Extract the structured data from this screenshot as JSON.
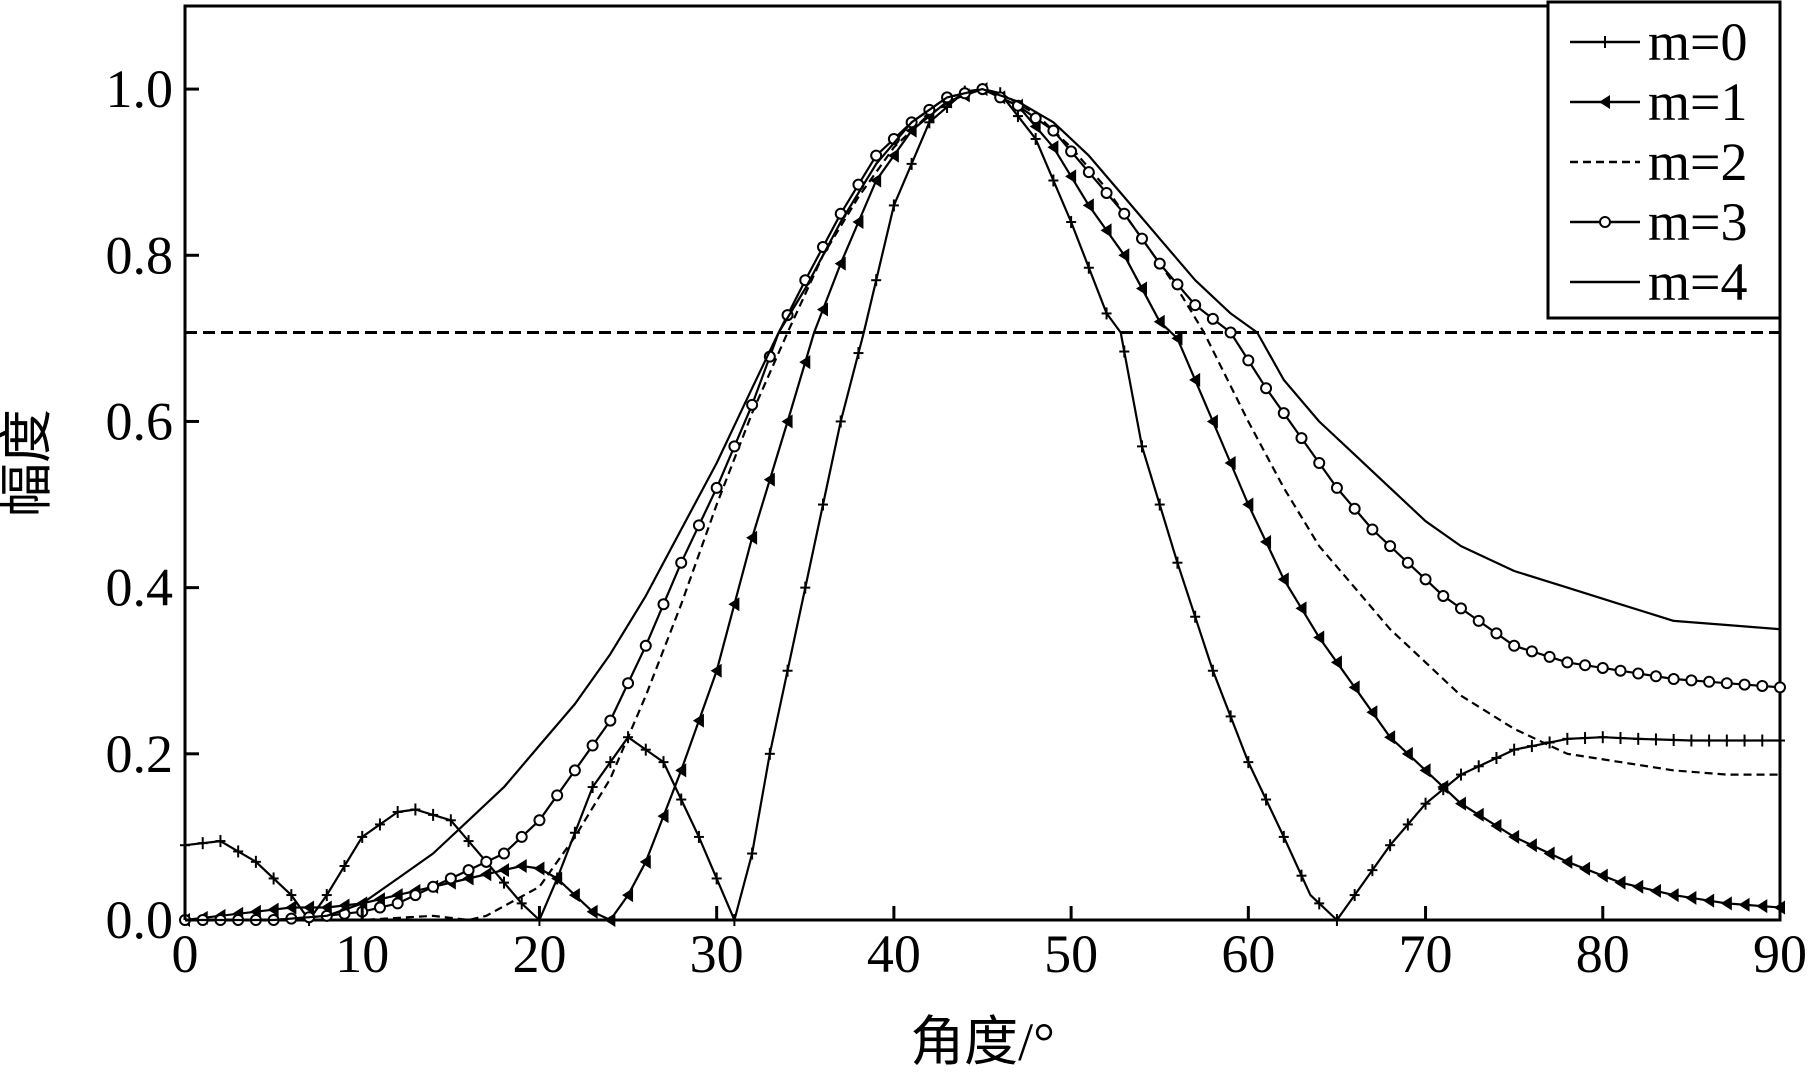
{
  "chart_data": {
    "type": "line",
    "title": "",
    "xlabel": "角度/°",
    "ylabel": "幅度",
    "xlim": [
      0,
      90
    ],
    "ylim": [
      0,
      1.1
    ],
    "x_ticks": [
      "0",
      "10",
      "20",
      "30",
      "40",
      "50",
      "60",
      "70",
      "80",
      "90"
    ],
    "y_ticks": [
      "0.0",
      "0.2",
      "0.4",
      "0.6",
      "0.8",
      "1.0"
    ],
    "grid": false,
    "legend_position": "top-right",
    "reference_line": {
      "y": 0.707,
      "style": "dashed"
    },
    "series": [
      {
        "name": "m=0",
        "marker": "plus",
        "dash": "solid",
        "points": [
          [
            0,
            0.09
          ],
          [
            2,
            0.095
          ],
          [
            4,
            0.07
          ],
          [
            6,
            0.03
          ],
          [
            7,
            0.0
          ],
          [
            8,
            0.03
          ],
          [
            10,
            0.1
          ],
          [
            12,
            0.13
          ],
          [
            13,
            0.133
          ],
          [
            15,
            0.12
          ],
          [
            17,
            0.07
          ],
          [
            19,
            0.02
          ],
          [
            20,
            0.0
          ],
          [
            21,
            0.05
          ],
          [
            23,
            0.16
          ],
          [
            25,
            0.22
          ],
          [
            27,
            0.19
          ],
          [
            29,
            0.1
          ],
          [
            31,
            0.0
          ],
          [
            32,
            0.08
          ],
          [
            33,
            0.2
          ],
          [
            35,
            0.4
          ],
          [
            37,
            0.6
          ],
          [
            38.3,
            0.707
          ],
          [
            40,
            0.86
          ],
          [
            42,
            0.96
          ],
          [
            44,
            0.997
          ],
          [
            45,
            1.0
          ],
          [
            46,
            0.995
          ],
          [
            48,
            0.94
          ],
          [
            50,
            0.84
          ],
          [
            52,
            0.73
          ],
          [
            52.8,
            0.707
          ],
          [
            54,
            0.57
          ],
          [
            56,
            0.43
          ],
          [
            58,
            0.3
          ],
          [
            60,
            0.19
          ],
          [
            62,
            0.1
          ],
          [
            63.5,
            0.03
          ],
          [
            65,
            0.0
          ],
          [
            66,
            0.03
          ],
          [
            68,
            0.09
          ],
          [
            70,
            0.14
          ],
          [
            72,
            0.175
          ],
          [
            75,
            0.205
          ],
          [
            78,
            0.218
          ],
          [
            80,
            0.22
          ],
          [
            82,
            0.218
          ],
          [
            85,
            0.216
          ],
          [
            90,
            0.216
          ]
        ]
      },
      {
        "name": "m=1",
        "marker": "left-triangle",
        "dash": "solid",
        "points": [
          [
            0,
            0.0
          ],
          [
            2,
            0.005
          ],
          [
            4,
            0.01
          ],
          [
            6,
            0.015
          ],
          [
            8,
            0.015
          ],
          [
            10,
            0.02
          ],
          [
            12,
            0.03
          ],
          [
            14,
            0.04
          ],
          [
            16,
            0.05
          ],
          [
            18,
            0.06
          ],
          [
            19,
            0.065
          ],
          [
            20,
            0.062
          ],
          [
            21,
            0.05
          ],
          [
            22,
            0.03
          ],
          [
            23,
            0.01
          ],
          [
            24,
            0.0
          ],
          [
            25,
            0.03
          ],
          [
            26,
            0.07
          ],
          [
            28,
            0.18
          ],
          [
            30,
            0.3
          ],
          [
            32,
            0.46
          ],
          [
            34,
            0.6
          ],
          [
            35.5,
            0.707
          ],
          [
            37,
            0.79
          ],
          [
            39,
            0.89
          ],
          [
            41,
            0.95
          ],
          [
            43,
            0.985
          ],
          [
            45,
            1.0
          ],
          [
            47,
            0.98
          ],
          [
            49,
            0.93
          ],
          [
            51,
            0.86
          ],
          [
            53,
            0.8
          ],
          [
            55,
            0.72
          ],
          [
            56,
            0.7
          ],
          [
            58,
            0.6
          ],
          [
            60,
            0.5
          ],
          [
            62,
            0.41
          ],
          [
            64,
            0.34
          ],
          [
            66,
            0.28
          ],
          [
            68,
            0.22
          ],
          [
            70,
            0.18
          ],
          [
            72,
            0.14
          ],
          [
            75,
            0.1
          ],
          [
            78,
            0.07
          ],
          [
            81,
            0.045
          ],
          [
            84,
            0.03
          ],
          [
            87,
            0.02
          ],
          [
            90,
            0.015
          ]
        ]
      },
      {
        "name": "m=2",
        "marker": "none",
        "dash": "dashed",
        "points": [
          [
            0,
            0.0
          ],
          [
            5,
            0.0
          ],
          [
            10,
            0.0
          ],
          [
            14,
            0.005
          ],
          [
            16,
            0.0
          ],
          [
            17,
            0.005
          ],
          [
            20,
            0.04
          ],
          [
            22,
            0.1
          ],
          [
            24,
            0.17
          ],
          [
            26,
            0.27
          ],
          [
            28,
            0.38
          ],
          [
            30,
            0.5
          ],
          [
            32,
            0.61
          ],
          [
            34,
            0.707
          ],
          [
            36,
            0.8
          ],
          [
            38,
            0.87
          ],
          [
            40,
            0.93
          ],
          [
            42,
            0.97
          ],
          [
            44,
            0.995
          ],
          [
            45,
            1.0
          ],
          [
            46,
            0.995
          ],
          [
            48,
            0.97
          ],
          [
            50,
            0.93
          ],
          [
            52,
            0.88
          ],
          [
            54,
            0.82
          ],
          [
            56,
            0.76
          ],
          [
            57.5,
            0.707
          ],
          [
            60,
            0.6
          ],
          [
            62,
            0.52
          ],
          [
            64,
            0.45
          ],
          [
            66,
            0.4
          ],
          [
            68,
            0.35
          ],
          [
            70,
            0.31
          ],
          [
            72,
            0.27
          ],
          [
            75,
            0.23
          ],
          [
            78,
            0.2
          ],
          [
            81,
            0.19
          ],
          [
            84,
            0.18
          ],
          [
            87,
            0.175
          ],
          [
            90,
            0.175
          ]
        ]
      },
      {
        "name": "m=3",
        "marker": "circle",
        "dash": "solid",
        "points": [
          [
            0,
            0.0
          ],
          [
            5,
            0.0
          ],
          [
            8,
            0.005
          ],
          [
            10,
            0.01
          ],
          [
            12,
            0.02
          ],
          [
            14,
            0.04
          ],
          [
            16,
            0.06
          ],
          [
            18,
            0.08
          ],
          [
            20,
            0.12
          ],
          [
            22,
            0.18
          ],
          [
            24,
            0.24
          ],
          [
            26,
            0.33
          ],
          [
            28,
            0.43
          ],
          [
            30,
            0.52
          ],
          [
            32,
            0.62
          ],
          [
            33.5,
            0.707
          ],
          [
            35,
            0.77
          ],
          [
            37,
            0.85
          ],
          [
            39,
            0.92
          ],
          [
            41,
            0.96
          ],
          [
            43,
            0.99
          ],
          [
            45,
            1.0
          ],
          [
            47,
            0.98
          ],
          [
            49,
            0.95
          ],
          [
            51,
            0.9
          ],
          [
            53,
            0.85
          ],
          [
            55,
            0.79
          ],
          [
            57,
            0.74
          ],
          [
            59,
            0.707
          ],
          [
            61,
            0.64
          ],
          [
            63,
            0.58
          ],
          [
            65,
            0.52
          ],
          [
            67,
            0.47
          ],
          [
            69,
            0.43
          ],
          [
            71,
            0.39
          ],
          [
            73,
            0.36
          ],
          [
            75,
            0.33
          ],
          [
            78,
            0.31
          ],
          [
            81,
            0.3
          ],
          [
            84,
            0.29
          ],
          [
            87,
            0.285
          ],
          [
            90,
            0.28
          ]
        ]
      },
      {
        "name": "m=4",
        "marker": "none",
        "dash": "solid",
        "points": [
          [
            0,
            0.0
          ],
          [
            5,
            0.0
          ],
          [
            8,
            0.005
          ],
          [
            10,
            0.02
          ],
          [
            12,
            0.05
          ],
          [
            14,
            0.08
          ],
          [
            16,
            0.12
          ],
          [
            18,
            0.16
          ],
          [
            20,
            0.21
          ],
          [
            22,
            0.26
          ],
          [
            24,
            0.32
          ],
          [
            26,
            0.39
          ],
          [
            28,
            0.47
          ],
          [
            30,
            0.55
          ],
          [
            32,
            0.64
          ],
          [
            33.5,
            0.707
          ],
          [
            35,
            0.76
          ],
          [
            37,
            0.84
          ],
          [
            39,
            0.91
          ],
          [
            41,
            0.96
          ],
          [
            43,
            0.99
          ],
          [
            45,
            1.0
          ],
          [
            47,
            0.985
          ],
          [
            49,
            0.96
          ],
          [
            51,
            0.92
          ],
          [
            53,
            0.87
          ],
          [
            55,
            0.82
          ],
          [
            57,
            0.77
          ],
          [
            59,
            0.73
          ],
          [
            60.5,
            0.707
          ],
          [
            62,
            0.65
          ],
          [
            64,
            0.6
          ],
          [
            66,
            0.56
          ],
          [
            68,
            0.52
          ],
          [
            70,
            0.48
          ],
          [
            72,
            0.45
          ],
          [
            75,
            0.42
          ],
          [
            78,
            0.4
          ],
          [
            81,
            0.38
          ],
          [
            84,
            0.36
          ],
          [
            87,
            0.355
          ],
          [
            90,
            0.35
          ]
        ]
      }
    ]
  }
}
